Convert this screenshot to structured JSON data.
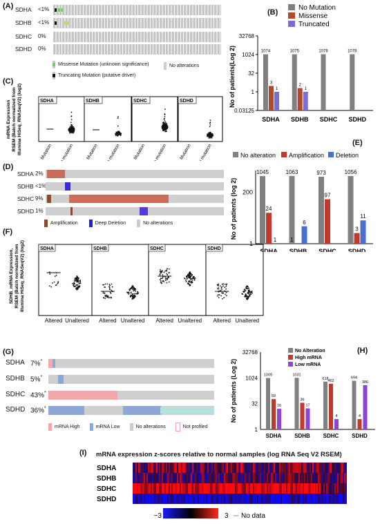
{
  "panels": {
    "A": {
      "label": "(A)",
      "genes": [
        "SDHA",
        "SDHB",
        "SDHC",
        "SDHD"
      ],
      "pcts": [
        "<1%",
        "<1%",
        "0%",
        "0%"
      ],
      "legend_missense": "Missense Mutation (unknown significance)",
      "legend_truncating": "Truncating Mutation (putative driver)",
      "legend_none": "No alterations"
    },
    "B": {
      "label": "(B)",
      "legend": [
        "No Mutation",
        "Missense",
        "Truncated"
      ],
      "ylabel": "No of patients(Log 2)",
      "yticks": [
        "32768",
        "1024",
        "32",
        "1",
        "0.03125"
      ],
      "categories": [
        "SDHA",
        "SDHB",
        "SDHC",
        "SDHD"
      ],
      "values": {
        "no_mutation": [
          1074,
          1075,
          1078,
          1078
        ],
        "missense": [
          3,
          2,
          0,
          0
        ],
        "truncated": [
          1,
          1,
          0,
          0
        ]
      },
      "labels": [
        [
          "1074",
          "3",
          "1"
        ],
        [
          "1075",
          "2",
          "1"
        ],
        [
          "1078",
          "",
          ""
        ],
        [
          "1078",
          "",
          ""
        ]
      ],
      "colors": [
        "#808080",
        "#b5472b",
        "#7f6ad6"
      ]
    },
    "C": {
      "label": "(C)",
      "ylabel_lines": [
        "mRNA Expression",
        "RSEM (Batch normalized from",
        "Illumina HiSeq_RNASeqV2) (log2)"
      ],
      "genes": [
        "SDHA",
        "SDHB",
        "SDHC",
        "SDHD"
      ],
      "xlabels": [
        "Mutation",
        "No mutation"
      ]
    },
    "D": {
      "label": "(D)",
      "genes": [
        "SDHA",
        "SDHB",
        "SDHC",
        "SDHD"
      ],
      "pcts": [
        "2%",
        "<1%",
        "9%",
        "1%"
      ],
      "legend": [
        "Amplification",
        "Deep Deletion",
        "No alterations"
      ]
    },
    "E": {
      "label": "(E)",
      "legend": [
        "No alteration",
        "Amplification",
        "Deletion"
      ],
      "ylabel": "No of patients (log 2)",
      "yticks": [
        "200",
        "1"
      ],
      "categories": [
        "SDHA",
        "SDHB",
        "SDHC",
        "SDHD"
      ],
      "labels": [
        [
          "1045",
          "24",
          "1"
        ],
        [
          "1063",
          "",
          "6"
        ],
        [
          "973",
          "97",
          ""
        ],
        [
          "1056",
          "3",
          "11"
        ]
      ],
      "extra_label_sdhb": "1",
      "colors": [
        "#808080",
        "#c0392b",
        "#4a6fd0"
      ]
    },
    "F": {
      "label": "(F)",
      "ylabel_lines": [
        "SDHB_mRNA Expression,",
        "RSEM (Batch normalized from",
        "Illumina HiSeq_RNASeqV2) (log2)"
      ],
      "genes": [
        "SDHA",
        "SDHB",
        "SDHC",
        "SDHD"
      ],
      "xlabels": [
        "Altered",
        "Unaltered"
      ]
    },
    "G": {
      "label": "(G)",
      "genes": [
        "SDHA",
        "SDHB",
        "SDHC",
        "SDHD"
      ],
      "pcts": [
        "7%",
        "5%",
        "43%",
        "36%"
      ],
      "star": "*",
      "legend": [
        "mRNA High",
        "mRNA Low",
        "No alterations",
        "Not profiled"
      ]
    },
    "H": {
      "label": "(H)",
      "legend": [
        "No Alteration",
        "High mRNA",
        "Low mRNA"
      ],
      "ylabel": "No of patients (Log 2)",
      "yticks": [
        "32768",
        "1024",
        "32",
        "1"
      ],
      "categories": [
        "SDHA",
        "SDHB",
        "SDHC",
        "SDHD"
      ],
      "labels": [
        [
          "1009",
          "59",
          "16"
        ],
        [
          "1031",
          "36",
          "17"
        ],
        [
          "618",
          "462",
          "4"
        ],
        [
          "694",
          "4",
          "386"
        ]
      ],
      "colors": [
        "#808080",
        "#c0392b",
        "#8e44d6"
      ]
    },
    "I": {
      "label": "(I)",
      "title": "mRNA expression z-scores relative to normal samples (log RNA Seq V2 RSEM)",
      "genes": [
        "SDHA",
        "SDHB",
        "SDHC",
        "SDHD"
      ],
      "scale_min": "−3",
      "scale_max": "3",
      "nodata": "No data"
    }
  }
}
